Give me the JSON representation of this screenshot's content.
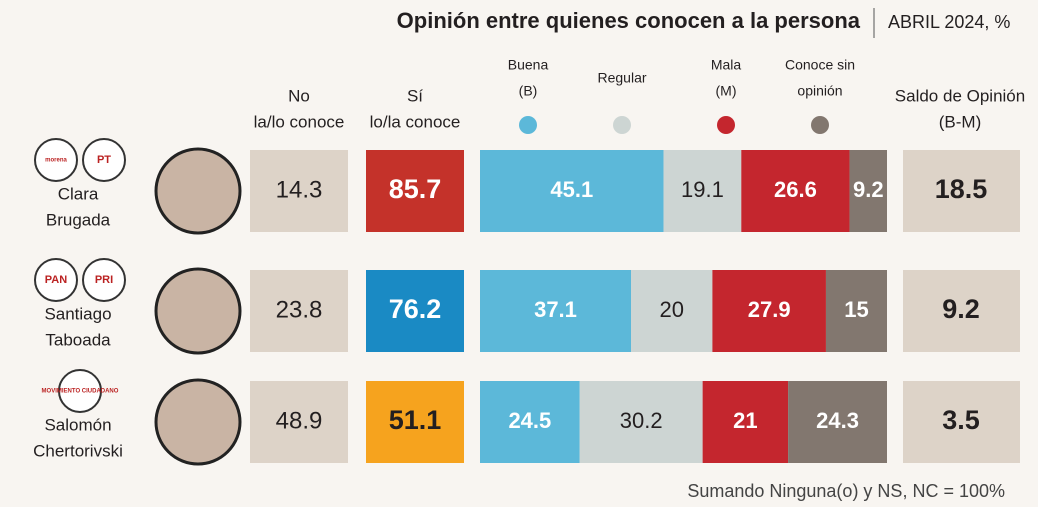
{
  "header": {
    "title": "Opinión entre quienes conocen a la persona",
    "subtitle": "ABRIL 2024, %"
  },
  "columns": {
    "no_conoce": [
      "No",
      "la/lo conoce"
    ],
    "si_conoce": [
      "Sí",
      "lo/la conoce"
    ],
    "saldo": [
      "Saldo de Opinión",
      "(B-M)"
    ]
  },
  "series": [
    {
      "name": [
        "Buena",
        "(B)"
      ],
      "color": "#5cb8d9"
    },
    {
      "name": [
        "Regular"
      ],
      "color": "#cdd5d3"
    },
    {
      "name": [
        "Mala",
        "(M)"
      ],
      "color": "#c4262e"
    },
    {
      "name": [
        "Conoce sin",
        "opinión"
      ],
      "color": "#82776f"
    }
  ],
  "rows": [
    {
      "name": [
        "Clara",
        "Brugada"
      ],
      "parties": [
        "morena",
        "PT"
      ],
      "no_conoce": 14.3,
      "si_conoce": 85.7,
      "si_color": "#c4322a",
      "opinion": [
        45.1,
        19.1,
        26.6,
        9.2
      ],
      "saldo": 18.5
    },
    {
      "name": [
        "Santiago",
        "Taboada"
      ],
      "parties": [
        "PAN",
        "PRI"
      ],
      "no_conoce": 23.8,
      "si_conoce": 76.2,
      "si_color": "#1a8ac4",
      "opinion": [
        37.1,
        20.0,
        27.9,
        15.0
      ],
      "saldo": 9.2
    },
    {
      "name": [
        "Salomón",
        "Chertorivski"
      ],
      "parties": [
        "MOVIMIENTO CIUDADANO"
      ],
      "no_conoce": 48.9,
      "si_conoce": 51.1,
      "si_color": "#f6a31e",
      "opinion": [
        24.5,
        30.2,
        21.0,
        24.3
      ],
      "saldo": 3.5
    }
  ],
  "footer": "Sumando Ninguna(o) y NS, NC = 100%"
}
